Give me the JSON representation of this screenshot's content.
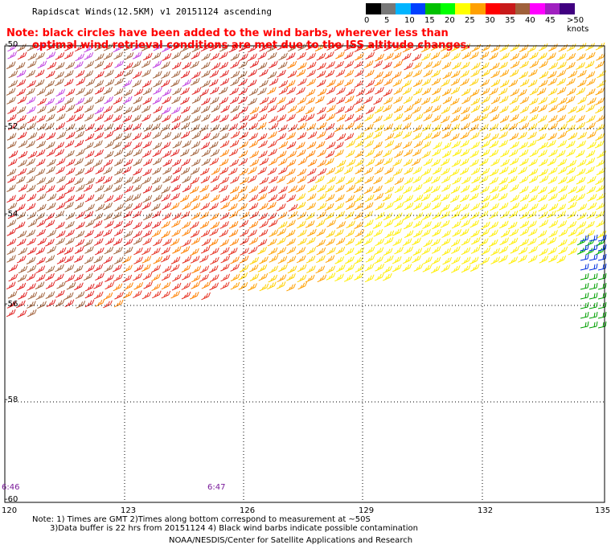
{
  "title": "Rapidscat Winds(12.5KM) v1 20151124 ascending",
  "note_line1": "Note: black circles have been added to the wind barbs, wherever less than",
  "note_line2": "optimal wind retrieval conditions are met due to the ISS altitude changes.",
  "legend": {
    "unit": ">50 knots",
    "labels": [
      "0",
      "5",
      "10",
      "15",
      "20",
      "25",
      "30",
      "35",
      "40",
      "45"
    ],
    "colors": [
      "#000000",
      "#777777",
      "#00b4ff",
      "#0040ff",
      "#00c000",
      "#00ff00",
      "#ffff00",
      "#ffa000",
      "#ff0000",
      "#c81a1a",
      "#a0603a",
      "#ff00ff",
      "#a020c0",
      "#400080"
    ]
  },
  "axes": {
    "x_ticks": [
      "120",
      "123",
      "126",
      "129",
      "132",
      "135"
    ],
    "y_ticks": [
      "-50",
      "-52",
      "-54",
      "-56",
      "-58",
      "-60"
    ]
  },
  "times": [
    "6:46",
    "6:47"
  ],
  "footer": {
    "line1": "Note: 1) Times are GMT 2)Times along bottom correspond to measurement at ~50S",
    "line2": "3)Data buffer is 22 hrs from 20151124 4) Black wind barbs indicate possible contamination",
    "line3": "NOAA/NESDIS/Center for Satellite Applications and Research"
  }
}
